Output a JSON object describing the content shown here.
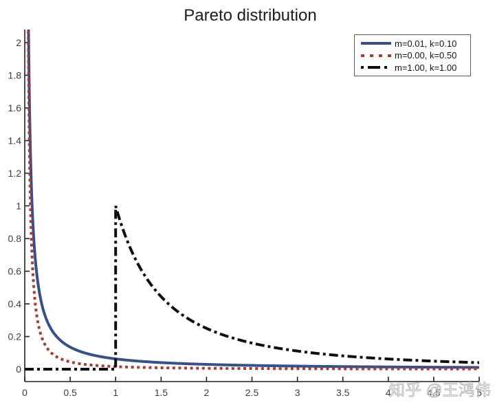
{
  "chart_data": {
    "type": "line",
    "title": "Pareto distribution",
    "xlabel": "",
    "ylabel": "",
    "xlim": [
      0,
      5
    ],
    "ylim": [
      -0.075,
      2.08
    ],
    "x_ticks": [
      0,
      0.5,
      1,
      1.5,
      2,
      2.5,
      3,
      3.5,
      4,
      4.5,
      5
    ],
    "x_tick_labels": [
      "0",
      "0.5",
      "1",
      "1.5",
      "2",
      "2.5",
      "3",
      "3.5",
      "4",
      "4.5",
      "5"
    ],
    "y_ticks": [
      0,
      0.2,
      0.4,
      0.6,
      0.8,
      1,
      1.2,
      1.4,
      1.6,
      1.8,
      2
    ],
    "y_tick_labels": [
      "0",
      "0.2",
      "0.4",
      "0.6",
      "0.8",
      "1",
      "1.2",
      "1.4",
      "1.6",
      "1.8",
      "2"
    ],
    "grid": false,
    "legend_position": "top-right",
    "axis_color": "#1f1f1f",
    "tick_label_color": "#3d3d3d",
    "title_color": "#1c1c1c",
    "series": [
      {
        "label": "m=0.01, k=0.10",
        "distribution": "pareto-pdf",
        "m": 0.01,
        "k": 0.1,
        "color": "#374f8b",
        "line_style": "solid",
        "line_width": 4
      },
      {
        "label": "m=0.00, k=0.50",
        "distribution": "pareto-pdf",
        "m": 0.001,
        "k": 0.5,
        "color": "#ad392f",
        "line_style": "dotted",
        "line_width": 4
      },
      {
        "label": "m=1.00, k=1.00",
        "distribution": "pareto-pdf",
        "m": 1.0,
        "k": 1.0,
        "color": "#0d0d0d",
        "line_style": "dash-dot",
        "line_width": 4
      }
    ]
  },
  "watermark": {
    "text": "知乎 @王鸿伟",
    "color": "#bdbdbd"
  }
}
